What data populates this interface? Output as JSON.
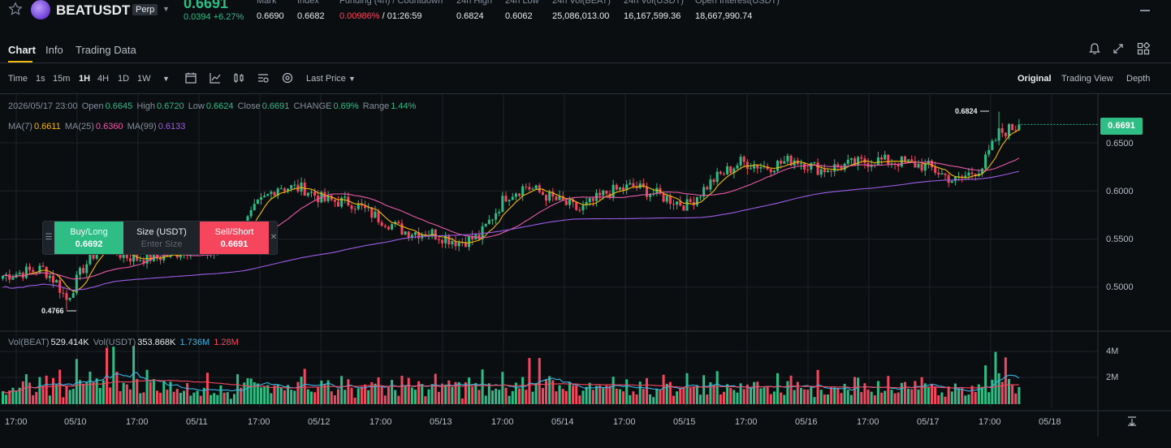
{
  "header": {
    "symbol": "BEATUSDT",
    "perp_badge": "Perp",
    "last_price": "0.6691",
    "change": "0.0394 +6.27%",
    "stats": [
      {
        "label": "Mark",
        "value": "0.6690"
      },
      {
        "label": "Index",
        "value": "0.6682"
      },
      {
        "label": "Funding (4h) / Countdown",
        "value_red": "0.00986%",
        "value": " / 01:26:59"
      },
      {
        "label": "24h High",
        "value": "0.6824"
      },
      {
        "label": "24h Low",
        "value": "0.6062"
      },
      {
        "label": "24h Vol(BEAT)",
        "value": "25,086,013.00"
      },
      {
        "label": "24h Vol(USDT)",
        "value": "16,167,599.36"
      },
      {
        "label": "Open Interest(USDT)",
        "value": "18,667,990.74"
      }
    ]
  },
  "tabs": [
    "Chart",
    "Info",
    "Trading Data"
  ],
  "toolbar": {
    "intervals": [
      "Time",
      "1s",
      "15m",
      "1H",
      "4H",
      "1D",
      "1W"
    ],
    "active_interval": "1H",
    "price_type": "Last Price",
    "views": [
      "Original",
      "Trading View",
      "Depth"
    ],
    "active_view": "Original"
  },
  "ohlc": {
    "date": "2026/05/17 23:00",
    "open_label": "Open",
    "open": "0.6645",
    "high_label": "High",
    "high": "0.6720",
    "low_label": "Low",
    "low": "0.6624",
    "close_label": "Close",
    "close": "0.6691",
    "change_label": "CHANGE",
    "change": "0.69%",
    "range_label": "Range",
    "range": "1.44%"
  },
  "ma": {
    "ma7_label": "MA(7)",
    "ma7": "0.6611",
    "ma25_label": "MA(25)",
    "ma25": "0.6360",
    "ma99_label": "MA(99)",
    "ma99": "0.6133"
  },
  "volume": {
    "vol_beat_label": "Vol(BEAT)",
    "vol_beat": "529.414K",
    "vol_usdt_label": "Vol(USDT)",
    "vol_usdt": "353.868K",
    "ma_a": "1.736M",
    "ma_b": "1.28M"
  },
  "order_widget": {
    "buy_label": "Buy/Long",
    "buy_price": "0.6692",
    "size_label": "Size (USDT)",
    "size_placeholder": "Enter Size",
    "sell_label": "Sell/Short",
    "sell_price": "0.6691"
  },
  "price_axis": [
    "0.6500",
    "0.6000",
    "0.5500",
    "0.5000"
  ],
  "volume_axis": [
    "4M",
    "2M"
  ],
  "time_axis": [
    "17:00",
    "05/10",
    "17:00",
    "05/11",
    "17:00",
    "05/12",
    "17:00",
    "05/13",
    "17:00",
    "05/14",
    "17:00",
    "05/15",
    "17:00",
    "05/16",
    "17:00",
    "05/17",
    "17:00",
    "05/18"
  ],
  "current_price_tag": "0.6691",
  "high_marker": "0.6824",
  "low_marker": "0.4766",
  "colors": {
    "up": "#2ebd85",
    "down": "#f6465d",
    "ma7": "#f0b90b",
    "ma25": "#e75aa8",
    "ma99": "#9d5ce8",
    "vol_ma": "#38b6e6"
  },
  "chart_data": {
    "type": "candlestick",
    "interval": "1H",
    "price_range": [
      0.47,
      0.69
    ],
    "x_ticks": [
      "17:00",
      "05/10",
      "17:00",
      "05/11",
      "17:00",
      "05/12",
      "17:00",
      "05/13",
      "17:00",
      "05/14",
      "17:00",
      "05/15",
      "17:00",
      "05/16",
      "17:00",
      "05/17",
      "17:00",
      "05/18"
    ],
    "y_ticks": [
      0.65,
      0.6,
      0.55,
      0.5
    ],
    "anchors_close": [
      [
        0,
        0.512
      ],
      [
        12,
        0.519
      ],
      [
        16,
        0.505
      ],
      [
        19,
        0.487
      ],
      [
        24,
        0.52
      ],
      [
        30,
        0.548
      ],
      [
        34,
        0.535
      ],
      [
        40,
        0.53
      ],
      [
        48,
        0.532
      ],
      [
        56,
        0.54
      ],
      [
        62,
        0.535
      ],
      [
        70,
        0.555
      ],
      [
        76,
        0.585
      ],
      [
        82,
        0.605
      ],
      [
        90,
        0.602
      ],
      [
        96,
        0.59
      ],
      [
        104,
        0.588
      ],
      [
        112,
        0.572
      ],
      [
        120,
        0.558
      ],
      [
        128,
        0.556
      ],
      [
        136,
        0.547
      ],
      [
        142,
        0.552
      ],
      [
        150,
        0.595
      ],
      [
        156,
        0.605
      ],
      [
        164,
        0.592
      ],
      [
        172,
        0.58
      ],
      [
        180,
        0.598
      ],
      [
        188,
        0.605
      ],
      [
        196,
        0.595
      ],
      [
        204,
        0.585
      ],
      [
        212,
        0.612
      ],
      [
        220,
        0.63
      ],
      [
        228,
        0.625
      ],
      [
        236,
        0.633
      ],
      [
        244,
        0.622
      ],
      [
        252,
        0.627
      ],
      [
        260,
        0.632
      ],
      [
        268,
        0.63
      ],
      [
        276,
        0.625
      ],
      [
        284,
        0.61
      ],
      [
        292,
        0.625
      ],
      [
        297,
        0.66
      ],
      [
        303,
        0.668
      ]
    ],
    "high": 0.6824,
    "low": 0.4766,
    "last": 0.6691
  }
}
